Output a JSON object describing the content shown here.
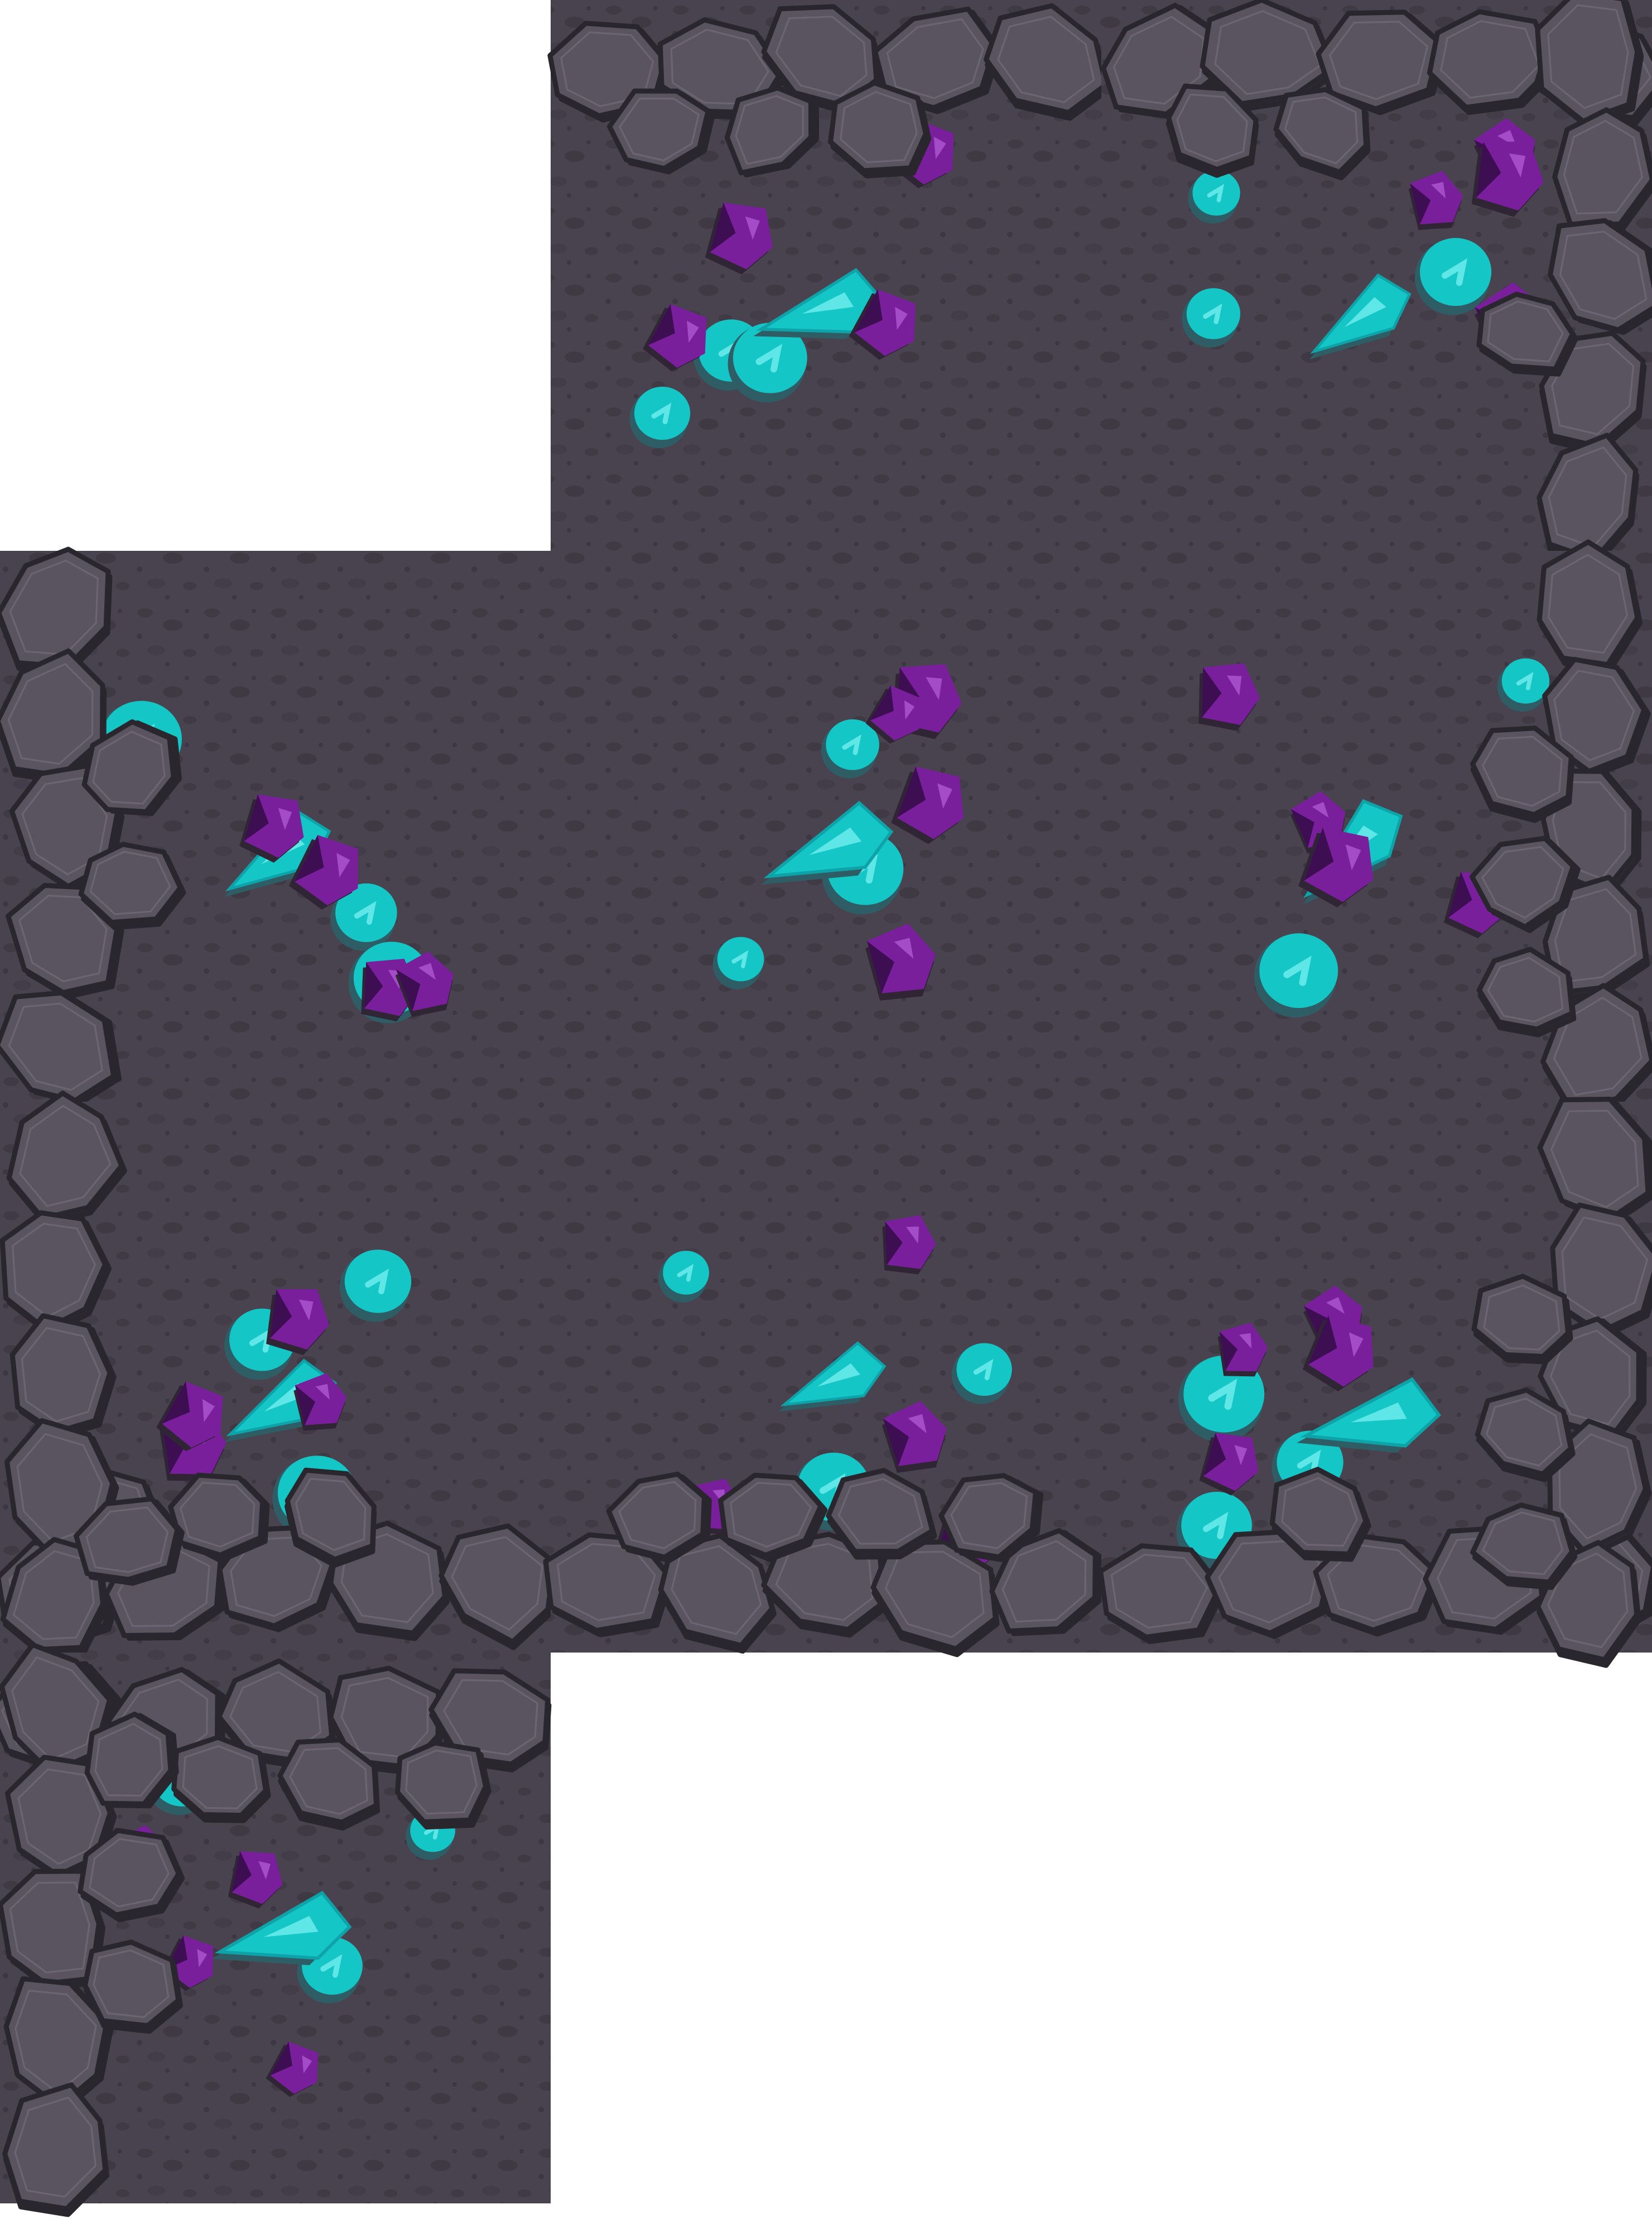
{
  "tileset": {
    "grid_cols": 3,
    "grid_rows": 4,
    "tiles": [
      {
        "id": "tile-top-center",
        "col": 1,
        "row": 0,
        "rim": [
          "top"
        ]
      },
      {
        "id": "tile-top-right",
        "col": 2,
        "row": 0,
        "rim": [
          "top",
          "right"
        ],
        "corner": "top-right"
      },
      {
        "id": "tile-mid-left",
        "col": 0,
        "row": 1,
        "rim": [
          "left"
        ]
      },
      {
        "id": "tile-center",
        "col": 1,
        "row": 1,
        "rim": []
      },
      {
        "id": "tile-mid-right",
        "col": 2,
        "row": 1,
        "rim": [
          "right"
        ]
      },
      {
        "id": "tile-bottom-left",
        "col": 0,
        "row": 2,
        "rim": [
          "bottom",
          "left"
        ],
        "corner": "bottom-left"
      },
      {
        "id": "tile-bottom-center",
        "col": 1,
        "row": 2,
        "rim": [
          "bottom"
        ]
      },
      {
        "id": "tile-bottom-right",
        "col": 2,
        "row": 2,
        "rim": [
          "bottom",
          "right"
        ],
        "corner": "bottom-right"
      },
      {
        "id": "tile-inner-corner",
        "col": 0,
        "row": 3,
        "rim": [
          "top-left"
        ],
        "corner": "top-left"
      }
    ]
  },
  "colors": {
    "background": "#ffffff",
    "ground": "#4b4650",
    "ground_dark": "#3b3640",
    "ground_spot": "#403b45",
    "rock_fill": "#5a5461",
    "rock_outline": "#2a262d",
    "rock_shadow": "#3e3943",
    "crystal_cyan": "#15c6c6",
    "crystal_cyan_light": "#5fe6e6",
    "crystal_cyan_shadow": "#2f5d66",
    "crystal_purple": "#7a1f9c",
    "crystal_purple_light": "#a44bc8",
    "crystal_purple_dark": "#3d0e52"
  },
  "icons": [
    "rock-icon",
    "cyan-crystal-icon",
    "purple-crystal-icon"
  ]
}
